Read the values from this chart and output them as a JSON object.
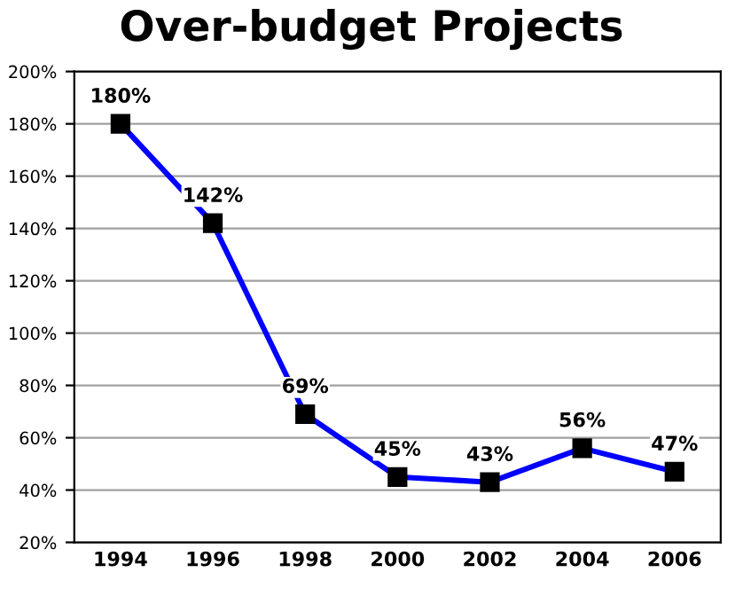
{
  "chart_data": {
    "type": "line",
    "title": "Over-budget Projects",
    "categories": [
      "1994",
      "1996",
      "1998",
      "2000",
      "2002",
      "2004",
      "2006"
    ],
    "series": [
      {
        "color": "#0000ff",
        "values": [
          180,
          142,
          69,
          45,
          43,
          56,
          47
        ],
        "value_labels": [
          "180%",
          "142%",
          "69%",
          "45%",
          "43%",
          "56%",
          "47%"
        ]
      }
    ],
    "ylim": [
      20,
      200
    ],
    "yticks": [
      {
        "value": 20,
        "label": "20%"
      },
      {
        "value": 40,
        "label": "40%"
      },
      {
        "value": 60,
        "label": "60%"
      },
      {
        "value": 80,
        "label": "80%"
      },
      {
        "value": 100,
        "label": "100%"
      },
      {
        "value": 120,
        "label": "120%"
      },
      {
        "value": 140,
        "label": "140%"
      },
      {
        "value": 160,
        "label": "160%"
      },
      {
        "value": 180,
        "label": "180%"
      },
      {
        "value": 200,
        "label": "200%"
      }
    ],
    "grid": "y",
    "marker": "square",
    "line_style": "solid",
    "legend": false
  }
}
